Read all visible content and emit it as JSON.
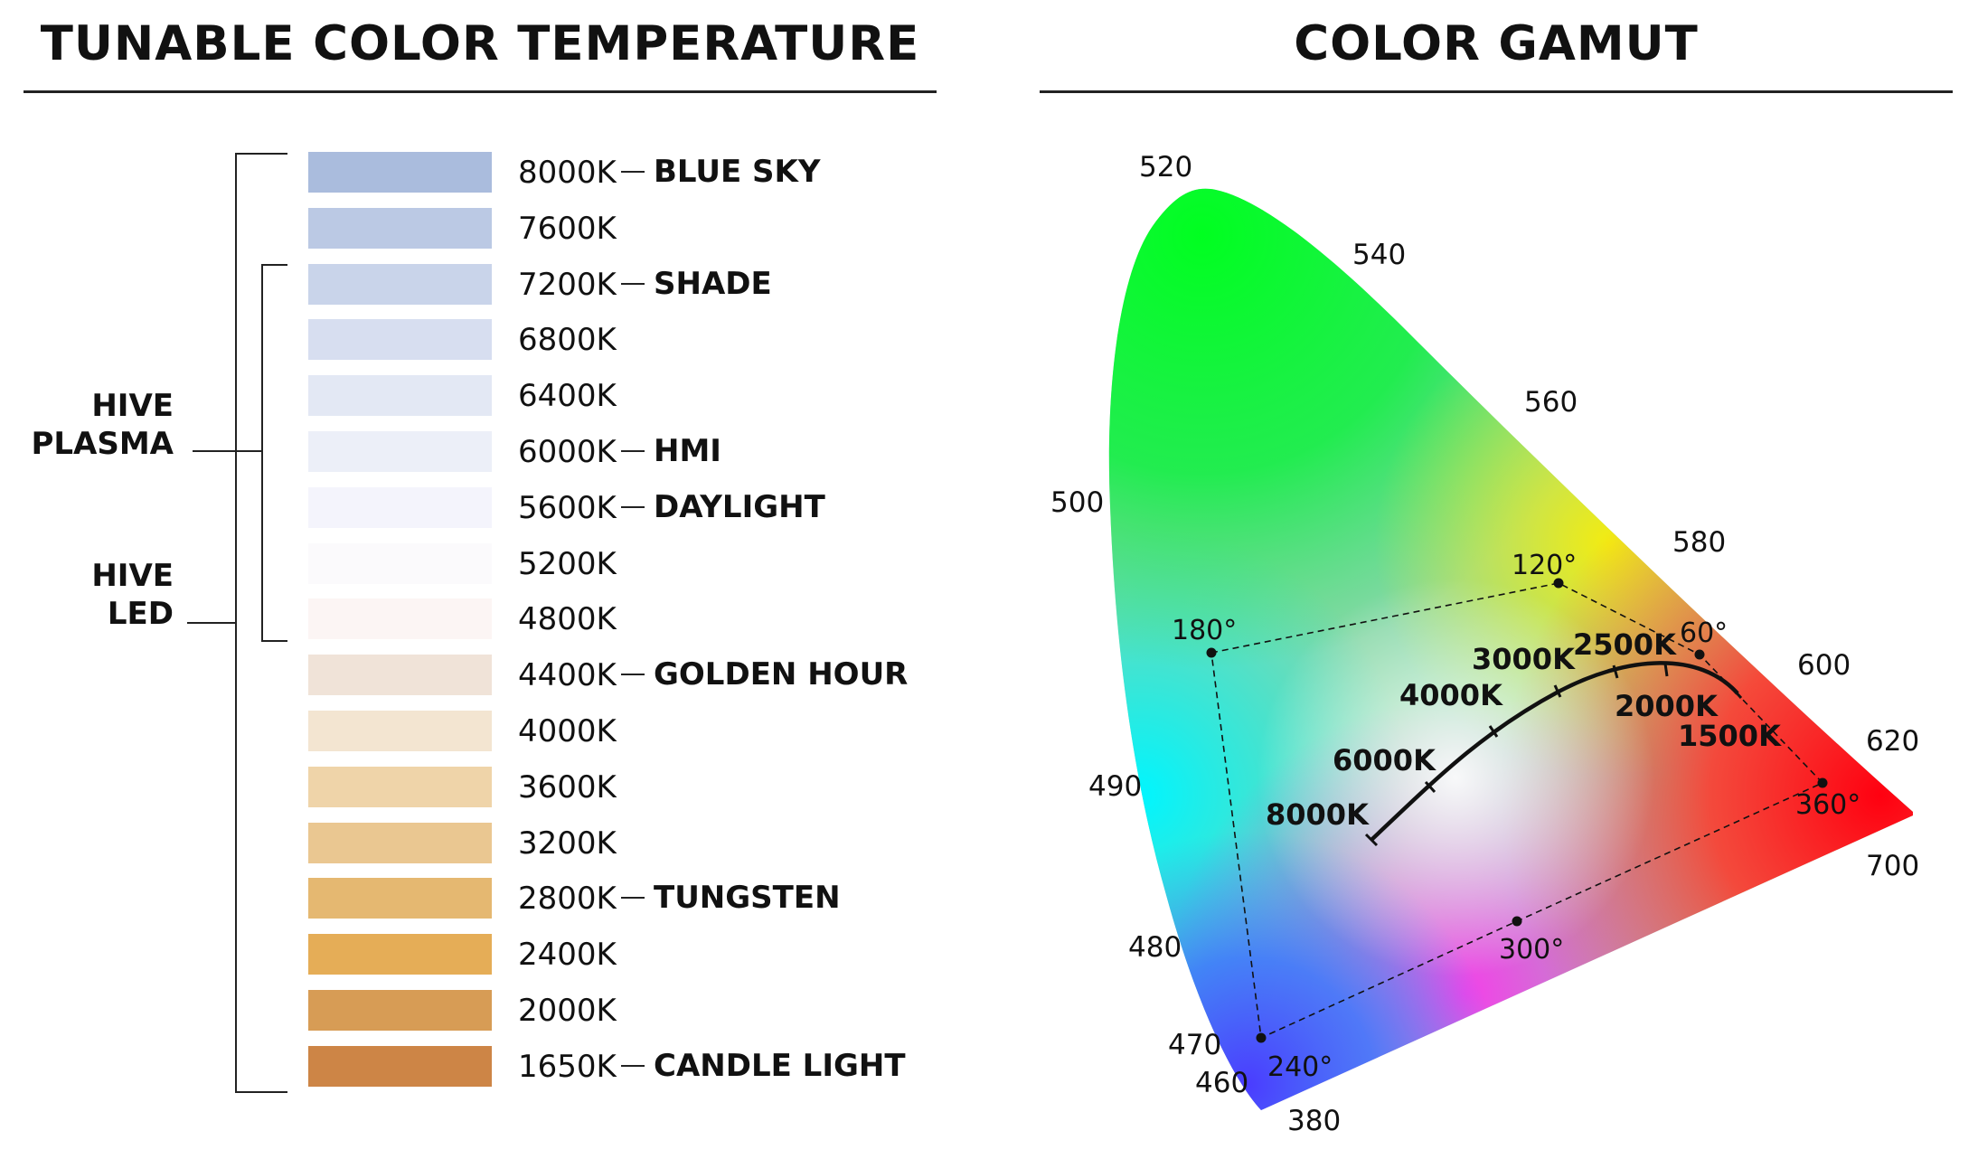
{
  "left_panel": {
    "title": "TUNABLE COLOR TEMPERATURE",
    "temperatures": [
      {
        "kelvin": "8000K",
        "name": "BLUE SKY",
        "color": "#aabcdd"
      },
      {
        "kelvin": "7600K",
        "name": "",
        "color": "#bbc9e4"
      },
      {
        "kelvin": "7200K",
        "name": "SHADE",
        "color": "#c9d4ea"
      },
      {
        "kelvin": "6800K",
        "name": "",
        "color": "#d7def0"
      },
      {
        "kelvin": "6400K",
        "name": "",
        "color": "#e3e8f4"
      },
      {
        "kelvin": "6000K",
        "name": "HMI",
        "color": "#eceff8"
      },
      {
        "kelvin": "5600K",
        "name": "DAYLIGHT",
        "color": "#f4f4fc"
      },
      {
        "kelvin": "5200K",
        "name": "",
        "color": "#fbfafc"
      },
      {
        "kelvin": "4800K",
        "name": "",
        "color": "#fcf5f4"
      },
      {
        "kelvin": "4400K",
        "name": "GOLDEN HOUR",
        "color": "#f0e3d8"
      },
      {
        "kelvin": "4000K",
        "name": "",
        "color": "#f3e5d1"
      },
      {
        "kelvin": "3600K",
        "name": "",
        "color": "#efd4a9"
      },
      {
        "kelvin": "3200K",
        "name": "",
        "color": "#eac791"
      },
      {
        "kelvin": "2800K",
        "name": "TUNGSTEN",
        "color": "#e5b871"
      },
      {
        "kelvin": "2400K",
        "name": "",
        "color": "#e5ad57"
      },
      {
        "kelvin": "2000K",
        "name": "",
        "color": "#d79c55"
      },
      {
        "kelvin": "1650K",
        "name": "CANDLE LIGHT",
        "color": "#cd8546"
      }
    ],
    "groups": {
      "plasma": "HIVE\nPLASMA",
      "led": "HIVE\nLED"
    }
  },
  "right_panel": {
    "title": "COLOR GAMUT",
    "wavelengths": [
      "520",
      "540",
      "560",
      "580",
      "600",
      "620",
      "700",
      "500",
      "490",
      "480",
      "470",
      "460",
      "380"
    ],
    "hue_points": [
      "120°",
      "60°",
      "180°",
      "360°",
      "300°",
      "240°"
    ],
    "locus_labels": [
      "8000K",
      "6000K",
      "4000K",
      "3000K",
      "2500K",
      "2000K",
      "1500K"
    ]
  }
}
